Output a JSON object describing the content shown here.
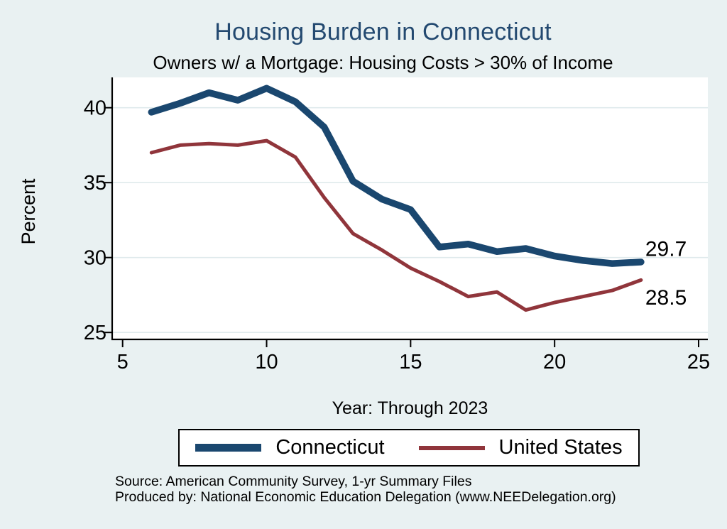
{
  "page": {
    "background": "#e9f1f2"
  },
  "chart_data": {
    "type": "line",
    "title": "Housing Burden in Connecticut",
    "subtitle": "Owners w/ a Mortgage: Housing Costs > 30% of Income",
    "xlabel": "Year: Through 2023",
    "ylabel": "Percent",
    "x": [
      6,
      7,
      8,
      9,
      10,
      11,
      12,
      13,
      14,
      15,
      16,
      17,
      18,
      19,
      20,
      21,
      22,
      23
    ],
    "series": [
      {
        "name": "Connecticut",
        "color": "#1a476f",
        "values": [
          39.7,
          40.3,
          41.0,
          40.5,
          41.3,
          40.4,
          38.7,
          35.1,
          33.9,
          33.2,
          30.7,
          30.9,
          30.4,
          30.6,
          30.1,
          29.8,
          29.6,
          29.7
        ]
      },
      {
        "name": "United States",
        "color": "#90353b",
        "values": [
          37.0,
          37.5,
          37.6,
          37.5,
          37.8,
          36.7,
          34.0,
          31.6,
          30.5,
          29.3,
          28.4,
          27.4,
          27.7,
          26.5,
          27.0,
          27.4,
          27.8,
          28.5
        ]
      }
    ],
    "end_labels": [
      "29.7",
      "28.5"
    ],
    "x_ticks": [
      5,
      10,
      15,
      20,
      25
    ],
    "y_ticks": [
      25,
      30,
      35,
      40
    ],
    "xlim": [
      4.64,
      25.32
    ],
    "ylim": [
      24.5,
      42.0
    ],
    "grid": true,
    "legend_position": "bottom",
    "plot_background": "#ffffff",
    "grid_color": "#dfeaec"
  },
  "legend": {
    "items": [
      {
        "label": "Connecticut",
        "color": "#1a476f"
      },
      {
        "label": "United States",
        "color": "#90353b"
      }
    ]
  },
  "footer": {
    "source": "Source: American Community Survey, 1-yr Summary Files",
    "produced_by": "Produced by: National Economic Education Delegation (www.NEEDelegation.org)"
  }
}
